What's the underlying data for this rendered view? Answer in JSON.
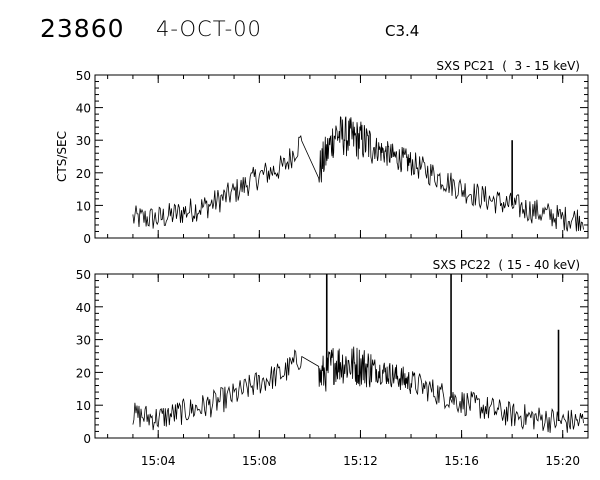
{
  "header": {
    "event_id": "23860",
    "date": "4-OCT-00",
    "flare_class": "C3.4"
  },
  "chart_data": [
    {
      "type": "line",
      "title": "SXS PC21  (  3 - 15 keV)",
      "ylabel": "CTS/SEC",
      "ylim": [
        0,
        50
      ],
      "yticks": [
        "0",
        "10",
        "20",
        "30",
        "40",
        "50"
      ],
      "xlim_minutes": [
        "15:01:30",
        "15:21:00"
      ],
      "xticks": [
        "15:04",
        "15:08",
        "15:12",
        "15:16",
        "15:20"
      ],
      "series": [
        {
          "x": [
            "15:03:00",
            "15:04:00",
            "15:05:00",
            "15:06:00",
            "15:07:00",
            "15:08:00",
            "15:09:00",
            "15:09:40",
            "15:10:00",
            "15:10:20",
            "15:11:00",
            "15:12:00",
            "15:13:00",
            "15:14:00",
            "15:15:00",
            "15:16:00",
            "15:17:00",
            "15:18:00",
            "15:19:00",
            "15:20:00",
            "15:20:50"
          ],
          "values": [
            6,
            6,
            8,
            10,
            14,
            19,
            22,
            30,
            24,
            20,
            32,
            30,
            26,
            23,
            19,
            15,
            12,
            10,
            8,
            6,
            6
          ],
          "noise": 4,
          "spikes": [
            {
              "x": "15:18:00",
              "y": 30
            }
          ]
        }
      ]
    },
    {
      "type": "line",
      "title": "SXS PC22  ( 15 - 40 keV)",
      "ylabel": "",
      "ylim": [
        0,
        50
      ],
      "yticks": [
        "0",
        "10",
        "20",
        "30",
        "40",
        "50"
      ],
      "xlim_minutes": [
        "15:01:30",
        "15:21:00"
      ],
      "xticks": [
        "15:04",
        "15:08",
        "15:12",
        "15:16",
        "15:20"
      ],
      "series": [
        {
          "x": [
            "15:03:00",
            "15:04:00",
            "15:05:00",
            "15:06:00",
            "15:07:00",
            "15:08:00",
            "15:09:00",
            "15:09:40",
            "15:10:00",
            "15:10:20",
            "15:11:00",
            "15:12:00",
            "15:13:00",
            "15:14:00",
            "15:15:00",
            "15:16:00",
            "15:17:00",
            "15:18:00",
            "15:19:00",
            "15:20:00",
            "15:20:50"
          ],
          "values": [
            7,
            6,
            8,
            10,
            13,
            17,
            20,
            25,
            21,
            18,
            23,
            22,
            20,
            17,
            14,
            11,
            9,
            7,
            6,
            5,
            5
          ],
          "noise": 4,
          "spikes": [
            {
              "x": "15:10:40",
              "y": 50
            },
            {
              "x": "15:15:35",
              "y": 50
            },
            {
              "x": "15:19:50",
              "y": 33
            }
          ]
        }
      ]
    }
  ]
}
